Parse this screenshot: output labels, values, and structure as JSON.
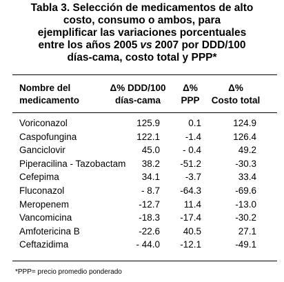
{
  "title": [
    "Tabla 3. Selección de medicamentos de alto",
    "costo, consumo o ambos, para",
    "ejemplificar las variaciones porcentuales",
    {
      "before": "entre los años 2005",
      "italic": "vs",
      "after": "2007 por DDD/100"
    },
    "días-cama, costo total y PPP*"
  ],
  "table": {
    "headers": [
      [
        "Nombre del",
        "medicamento"
      ],
      [
        "Δ% DDD/100",
        "días-cama"
      ],
      [
        "Δ%",
        "PPP"
      ],
      [
        "Δ%",
        "Costo total"
      ]
    ],
    "rows": [
      [
        "Voriconazol",
        "125.9",
        "0.1",
        "124.9"
      ],
      [
        "Caspofungina",
        "122.1",
        "-1.4",
        "126.4"
      ],
      [
        "Ganciclovir",
        "45.0",
        "- 0.4",
        "49.2"
      ],
      [
        "Piperacilina - Tazobactam",
        "38.2",
        "-51.2",
        "-30.3"
      ],
      [
        "Cefepima",
        "34.1",
        "-3.7",
        "33.4"
      ],
      [
        "Fluconazol",
        "- 8.7",
        "-64.3",
        "-69.6"
      ],
      [
        "Meropenem",
        "-12.7",
        "11.4",
        "-13.0"
      ],
      [
        "Vancomicina",
        "-18.3",
        "-17.4",
        "-30.2"
      ],
      [
        "Amfotericina B",
        "-22.6",
        "40.5",
        "27.1"
      ],
      [
        "Ceftazidima",
        "- 44.0",
        "-12.1",
        "-49.1"
      ]
    ]
  },
  "footnote": "*PPP= precio promedio ponderado"
}
